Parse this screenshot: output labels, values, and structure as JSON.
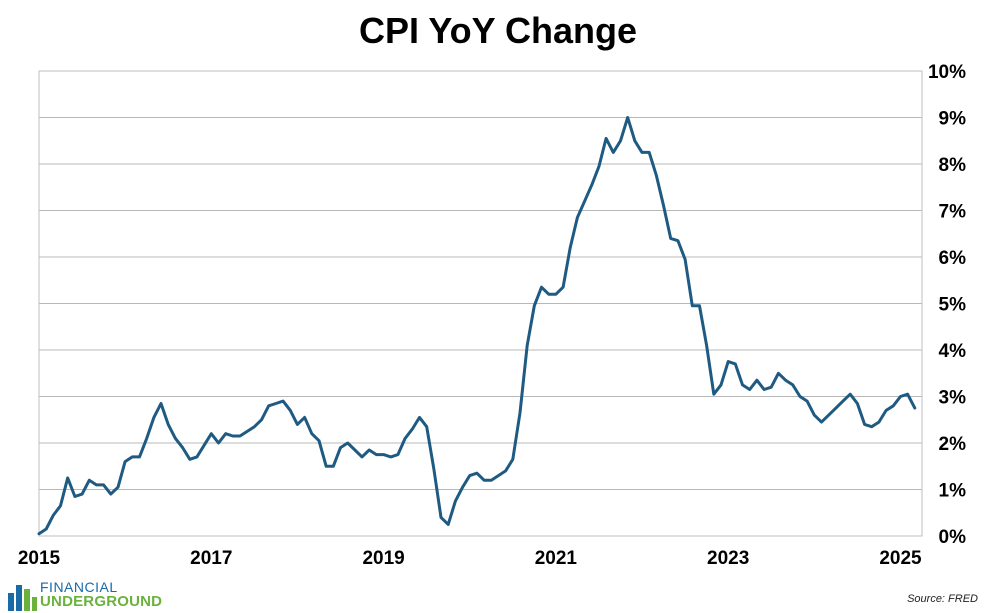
{
  "chart_data": {
    "type": "line",
    "title": "CPI YoY Change",
    "xlabel": "",
    "ylabel": "",
    "x_range": [
      2015.0,
      2025.25
    ],
    "ylim": [
      0,
      10
    ],
    "x_ticks": [
      "2015",
      "2017",
      "2019",
      "2021",
      "2023",
      "2025"
    ],
    "y_ticks": [
      "0%",
      "1%",
      "2%",
      "3%",
      "4%",
      "5%",
      "6%",
      "7%",
      "8%",
      "9%",
      "10%"
    ],
    "y_axis_side": "right",
    "grid": "horizontal",
    "line_color": "#1f5a82",
    "series": [
      {
        "x": [
          "2015-01",
          "2015-02",
          "2015-03",
          "2015-04",
          "2015-05",
          "2015-06",
          "2015-07",
          "2015-08",
          "2015-09",
          "2015-10",
          "2015-11",
          "2015-12",
          "2016-01",
          "2016-02",
          "2016-03",
          "2016-04",
          "2016-05",
          "2016-06",
          "2016-07",
          "2016-08",
          "2016-09",
          "2016-10",
          "2016-11",
          "2016-12",
          "2017-01",
          "2017-02",
          "2017-03",
          "2017-04",
          "2017-05",
          "2017-06",
          "2017-07",
          "2017-08",
          "2017-09",
          "2017-10",
          "2017-11",
          "2017-12",
          "2018-01",
          "2018-02",
          "2018-03",
          "2018-04",
          "2018-05",
          "2018-06",
          "2018-07",
          "2018-08",
          "2018-09",
          "2018-10",
          "2018-11",
          "2018-12",
          "2019-01",
          "2019-02",
          "2019-03",
          "2019-04",
          "2019-05",
          "2019-06",
          "2019-07",
          "2019-08",
          "2019-09",
          "2019-10",
          "2019-11",
          "2019-12",
          "2020-01",
          "2020-02",
          "2020-03",
          "2020-04",
          "2020-05",
          "2020-06",
          "2020-07",
          "2020-08",
          "2020-09",
          "2020-10",
          "2020-11",
          "2020-12",
          "2021-01",
          "2021-02",
          "2021-03",
          "2021-04",
          "2021-05",
          "2021-06",
          "2021-07",
          "2021-08",
          "2021-09",
          "2021-10",
          "2021-11",
          "2021-12",
          "2022-01",
          "2022-02",
          "2022-03",
          "2022-04",
          "2022-05",
          "2022-06",
          "2022-07",
          "2022-08",
          "2022-09",
          "2022-10",
          "2022-11",
          "2022-12",
          "2023-01",
          "2023-02",
          "2023-03",
          "2023-04",
          "2023-05",
          "2023-06",
          "2023-07",
          "2023-08",
          "2023-09",
          "2023-10",
          "2023-11",
          "2023-12",
          "2024-01",
          "2024-02",
          "2024-03",
          "2024-04",
          "2024-05",
          "2024-06",
          "2024-07",
          "2024-08",
          "2024-09",
          "2024-10",
          "2024-11",
          "2024-12",
          "2025-01",
          "2025-02",
          "2025-03"
        ],
        "values": [
          0.05,
          0.15,
          0.45,
          0.65,
          1.25,
          0.85,
          0.9,
          1.2,
          1.1,
          1.1,
          0.9,
          1.05,
          1.6,
          1.7,
          1.7,
          2.1,
          2.55,
          2.85,
          2.4,
          2.1,
          1.9,
          1.65,
          1.7,
          1.95,
          2.2,
          2.0,
          2.2,
          2.15,
          2.15,
          2.25,
          2.35,
          2.5,
          2.8,
          2.85,
          2.9,
          2.7,
          2.4,
          2.55,
          2.2,
          2.05,
          1.5,
          1.5,
          1.9,
          2.0,
          1.85,
          1.7,
          1.85,
          1.75,
          1.75,
          1.7,
          1.75,
          2.1,
          2.3,
          2.55,
          2.35,
          1.45,
          0.4,
          0.25,
          0.75,
          1.05,
          1.3,
          1.35,
          1.2,
          1.2,
          1.3,
          1.4,
          1.65,
          2.65,
          4.1,
          4.95,
          5.35,
          5.2,
          5.2,
          5.35,
          6.2,
          6.85,
          7.2,
          7.55,
          7.95,
          8.55,
          8.25,
          8.5,
          9.0,
          8.5,
          8.25,
          8.25,
          7.75,
          7.1,
          6.4,
          6.35,
          5.95,
          4.95,
          4.95,
          4.1,
          3.05,
          3.25,
          3.75,
          3.7,
          3.25,
          3.15,
          3.35,
          3.15,
          3.2,
          3.5,
          3.35,
          3.25,
          3.0,
          2.9,
          2.6,
          2.45,
          2.6,
          2.75,
          2.9,
          3.05,
          2.85,
          2.4,
          2.35,
          2.45,
          2.7,
          2.8,
          3.0,
          3.05,
          2.75
        ]
      }
    ]
  },
  "source_note": "Source: FRED",
  "logo": {
    "top_text": "FINANCIAL",
    "bottom_text": "UNDERGROUND",
    "colors": {
      "blue": "#1a6aa8",
      "green": "#6ab23c"
    }
  }
}
